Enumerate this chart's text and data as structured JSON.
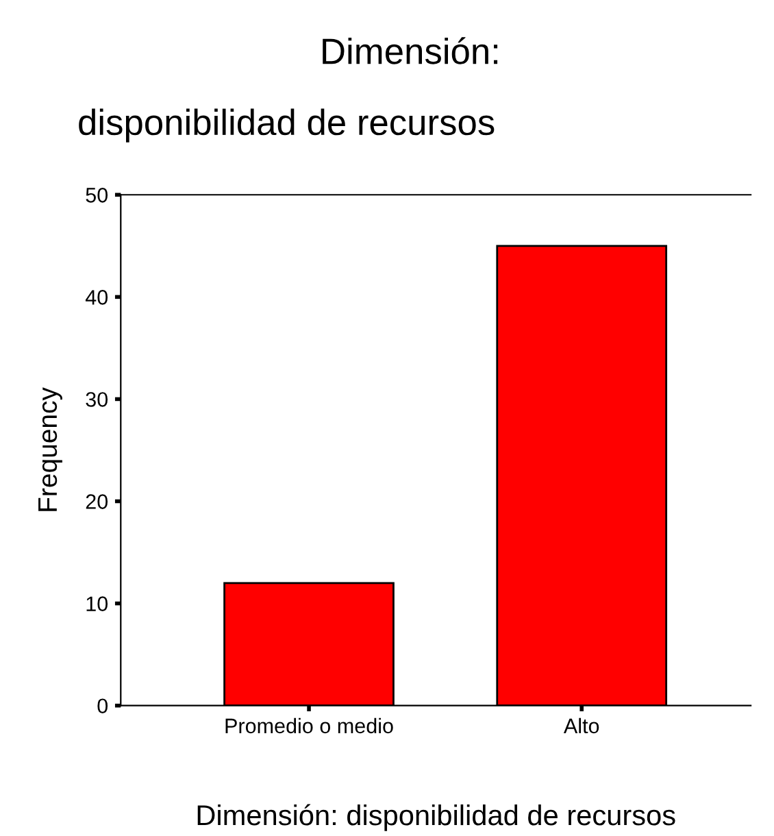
{
  "chart_data": {
    "type": "bar",
    "title": "Dimensión: disponibilidad de recursos",
    "xlabel": "Dimensión: disponibilidad de recursos",
    "ylabel": "Frequency",
    "categories": [
      "Promedio o medio",
      "Alto"
    ],
    "values": [
      12,
      45
    ],
    "color": "#ff0000",
    "ylim": [
      0,
      50
    ],
    "yticks": [
      0,
      10,
      20,
      30,
      40,
      50
    ],
    "grid": false,
    "legend": false
  }
}
